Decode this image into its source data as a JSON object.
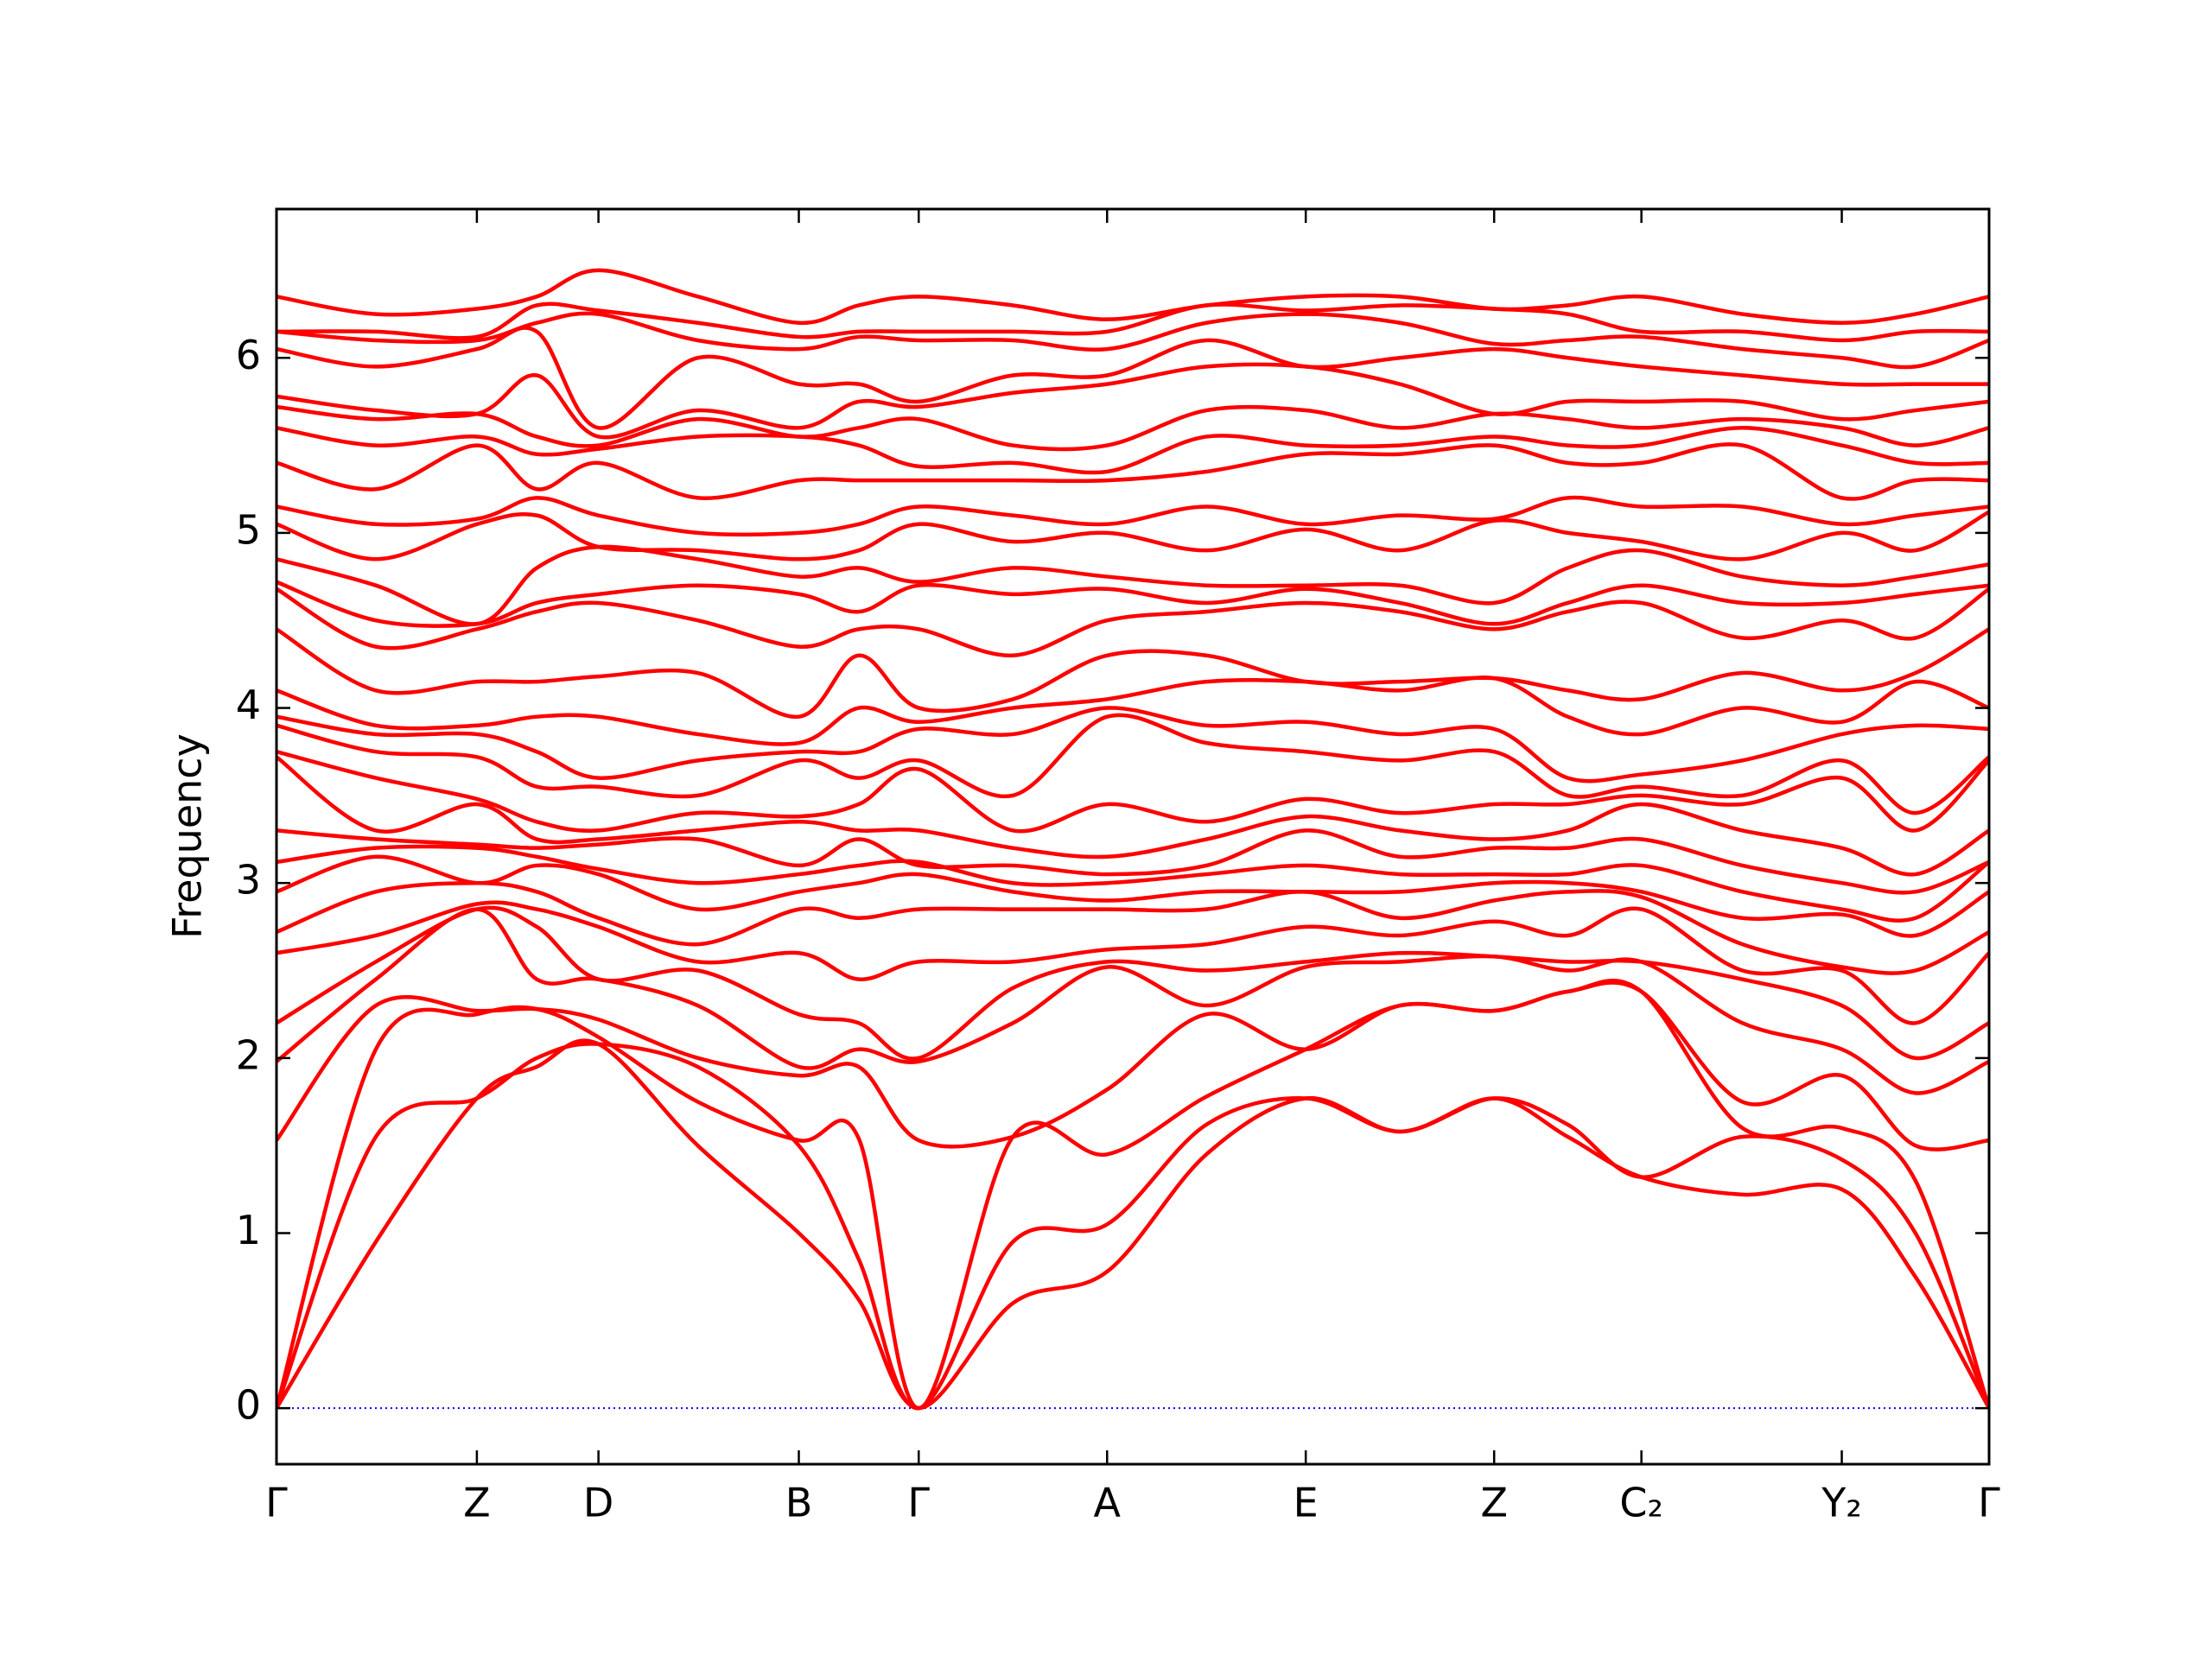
{
  "chart_data": {
    "type": "line",
    "ylabel": "Frequency",
    "color": "#ff0000",
    "xlim": [
      0,
      1
    ],
    "ylim": [
      -0.32,
      6.85
    ],
    "yticks": [
      0,
      1,
      2,
      3,
      4,
      5,
      6
    ],
    "xticks": [
      {
        "value": 0,
        "label": "Γ"
      },
      {
        "value": 0.117,
        "label": "Z"
      },
      {
        "value": 0.188,
        "label": "D"
      },
      {
        "value": 0.305,
        "label": "B"
      },
      {
        "value": 0.375,
        "label": "Γ"
      },
      {
        "value": 0.485,
        "label": "A"
      },
      {
        "value": 0.601,
        "label": "E"
      },
      {
        "value": 0.711,
        "label": "Z"
      },
      {
        "value": 0.797,
        "label": "C₂"
      },
      {
        "value": 0.914,
        "label": "Y₂"
      },
      {
        "value": 1,
        "label": "Γ"
      }
    ],
    "reference_line": {
      "value": 0,
      "color": "#0000ff",
      "style": "dotted"
    },
    "x": [
      0,
      0.058,
      0.117,
      0.152,
      0.188,
      0.246,
      0.305,
      0.34,
      0.375,
      0.43,
      0.485,
      0.543,
      0.601,
      0.656,
      0.711,
      0.754,
      0.797,
      0.856,
      0.914,
      0.957,
      1
    ],
    "series": [
      {
        "values": [
          0,
          0.95,
          1.77,
          1.95,
          2.08,
          1.5,
          1.0,
          0.62,
          0,
          0.6,
          0.78,
          1.45,
          1.77,
          1.58,
          1.77,
          1.55,
          1.32,
          1.22,
          1.25,
          0.75,
          0
        ]
      },
      {
        "values": [
          0,
          1.55,
          1.77,
          2.0,
          2.08,
          1.95,
          1.5,
          0.85,
          0,
          0.95,
          1.05,
          1.62,
          1.77,
          1.58,
          1.77,
          1.62,
          1.32,
          1.55,
          1.42,
          1.0,
          0
        ]
      },
      {
        "values": [
          0,
          2.05,
          2.25,
          2.28,
          2.12,
          1.75,
          1.53,
          1.54,
          0,
          1.55,
          1.45,
          1.78,
          2.05,
          2.3,
          2.27,
          2.38,
          2.38,
          1.6,
          1.6,
          1.3,
          0
        ]
      },
      {
        "values": [
          1.53,
          2.3,
          2.27,
          2.28,
          2.22,
          2.0,
          1.9,
          1.95,
          1.53,
          1.55,
          1.82,
          2.25,
          2.05,
          2.3,
          2.27,
          2.38,
          2.38,
          1.75,
          1.9,
          1.5,
          1.53
        ]
      },
      {
        "values": [
          1.98,
          2.45,
          2.85,
          2.45,
          2.45,
          2.3,
          1.95,
          2.05,
          1.98,
          2.2,
          2.52,
          2.3,
          2.52,
          2.55,
          2.58,
          2.5,
          2.55,
          2.2,
          2.05,
          1.8,
          1.98
        ]
      },
      {
        "values": [
          2.2,
          2.55,
          2.85,
          2.75,
          2.45,
          2.5,
          2.25,
          2.2,
          2.0,
          2.4,
          2.55,
          2.5,
          2.55,
          2.6,
          2.58,
          2.55,
          2.55,
          2.45,
          2.3,
          2.0,
          2.2
        ]
      },
      {
        "values": [
          2.6,
          2.7,
          2.88,
          2.85,
          2.75,
          2.55,
          2.6,
          2.45,
          2.55,
          2.55,
          2.62,
          2.65,
          2.75,
          2.7,
          2.78,
          2.7,
          2.85,
          2.5,
          2.5,
          2.2,
          2.6
        ]
      },
      {
        "values": [
          2.72,
          2.95,
          3.0,
          2.95,
          2.8,
          2.65,
          2.85,
          2.8,
          2.85,
          2.85,
          2.85,
          2.85,
          2.95,
          2.8,
          2.9,
          2.95,
          2.92,
          2.65,
          2.52,
          2.5,
          2.72
        ]
      },
      {
        "values": [
          2.95,
          3.15,
          3.0,
          3.1,
          3.05,
          2.85,
          2.95,
          3.0,
          3.05,
          2.95,
          2.9,
          2.95,
          2.95,
          2.95,
          3.0,
          3.0,
          2.95,
          2.8,
          2.82,
          2.7,
          2.95
        ]
      },
      {
        "values": [
          3.12,
          3.2,
          3.2,
          3.15,
          3.08,
          3.0,
          3.05,
          3.1,
          3.12,
          3.0,
          3.0,
          3.05,
          3.1,
          3.05,
          3.05,
          3.05,
          3.1,
          2.95,
          2.85,
          2.8,
          3.12
        ]
      },
      {
        "values": [
          3.3,
          3.25,
          3.22,
          3.2,
          3.22,
          3.25,
          3.1,
          3.25,
          3.1,
          3.1,
          3.05,
          3.1,
          3.3,
          3.15,
          3.2,
          3.2,
          3.25,
          3.1,
          3.0,
          2.95,
          3.12
        ]
      },
      {
        "values": [
          3.72,
          3.3,
          3.45,
          3.25,
          3.25,
          3.3,
          3.35,
          3.3,
          3.3,
          3.2,
          3.15,
          3.25,
          3.38,
          3.3,
          3.25,
          3.3,
          3.45,
          3.3,
          3.2,
          3.05,
          3.3
        ]
      },
      {
        "values": [
          3.75,
          3.6,
          3.48,
          3.35,
          3.3,
          3.4,
          3.38,
          3.45,
          3.65,
          3.3,
          3.45,
          3.35,
          3.48,
          3.4,
          3.45,
          3.45,
          3.5,
          3.45,
          3.6,
          3.3,
          3.7
        ]
      },
      {
        "values": [
          3.9,
          3.75,
          3.72,
          3.55,
          3.55,
          3.5,
          3.7,
          3.6,
          3.7,
          3.5,
          3.95,
          3.8,
          3.75,
          3.7,
          3.75,
          3.5,
          3.55,
          3.5,
          3.7,
          3.4,
          3.72
        ]
      },
      {
        "values": [
          3.95,
          3.85,
          3.85,
          3.75,
          3.6,
          3.7,
          3.75,
          3.75,
          3.88,
          3.85,
          4.0,
          3.9,
          3.92,
          3.85,
          3.88,
          3.6,
          3.62,
          3.7,
          3.85,
          3.9,
          3.88
        ]
      },
      {
        "values": [
          4.1,
          3.9,
          3.9,
          3.95,
          3.95,
          3.85,
          3.8,
          4.0,
          3.92,
          4.0,
          4.05,
          4.15,
          4.15,
          4.1,
          4.17,
          3.95,
          3.85,
          4.0,
          3.92,
          4.15,
          4.0
        ]
      },
      {
        "values": [
          4.45,
          4.1,
          4.15,
          4.15,
          4.18,
          4.2,
          3.95,
          4.3,
          4.0,
          4.05,
          4.3,
          4.3,
          4.15,
          4.15,
          4.17,
          4.1,
          4.05,
          4.2,
          4.1,
          4.2,
          4.45
        ]
      },
      {
        "values": [
          4.68,
          4.35,
          4.45,
          4.55,
          4.6,
          4.5,
          4.35,
          4.45,
          4.45,
          4.3,
          4.5,
          4.55,
          4.6,
          4.55,
          4.45,
          4.55,
          4.6,
          4.4,
          4.5,
          4.4,
          4.68
        ]
      },
      {
        "values": [
          4.72,
          4.5,
          4.48,
          4.6,
          4.65,
          4.7,
          4.65,
          4.55,
          4.7,
          4.65,
          4.68,
          4.6,
          4.68,
          4.6,
          4.48,
          4.6,
          4.7,
          4.6,
          4.6,
          4.65,
          4.7
        ]
      },
      {
        "values": [
          4.85,
          4.7,
          4.48,
          4.8,
          4.92,
          4.85,
          4.75,
          4.8,
          4.72,
          4.8,
          4.75,
          4.7,
          4.7,
          4.7,
          4.6,
          4.8,
          4.9,
          4.75,
          4.7,
          4.75,
          4.82
        ]
      },
      {
        "values": [
          5.05,
          4.85,
          5.05,
          5.1,
          4.92,
          4.9,
          4.85,
          4.9,
          5.05,
          4.95,
          5.0,
          4.9,
          5.02,
          4.9,
          5.07,
          5.0,
          4.95,
          4.85,
          5.0,
          4.9,
          5.12
        ]
      },
      {
        "values": [
          5.15,
          5.05,
          5.08,
          5.2,
          5.1,
          5.0,
          5.0,
          5.05,
          5.15,
          5.1,
          5.05,
          5.15,
          5.05,
          5.1,
          5.08,
          5.2,
          5.15,
          5.15,
          5.05,
          5.1,
          5.15
        ]
      },
      {
        "values": [
          5.4,
          5.25,
          5.5,
          5.25,
          5.4,
          5.2,
          5.3,
          5.3,
          5.3,
          5.3,
          5.3,
          5.35,
          5.45,
          5.45,
          5.5,
          5.4,
          5.4,
          5.5,
          5.2,
          5.3,
          5.3
        ]
      },
      {
        "values": [
          5.6,
          5.5,
          5.55,
          5.45,
          5.48,
          5.55,
          5.55,
          5.5,
          5.38,
          5.4,
          5.35,
          5.55,
          5.5,
          5.5,
          5.55,
          5.5,
          5.5,
          5.6,
          5.5,
          5.4,
          5.4
        ]
      },
      {
        "values": [
          5.72,
          5.65,
          5.68,
          5.55,
          5.5,
          5.65,
          5.55,
          5.6,
          5.65,
          5.5,
          5.5,
          5.7,
          5.7,
          5.6,
          5.68,
          5.65,
          5.6,
          5.65,
          5.6,
          5.5,
          5.6
        ]
      },
      {
        "values": [
          5.78,
          5.7,
          5.68,
          5.9,
          5.55,
          5.7,
          5.6,
          5.75,
          5.72,
          5.8,
          5.85,
          5.95,
          5.95,
          5.85,
          5.68,
          5.75,
          5.75,
          5.75,
          5.65,
          5.7,
          5.75
        ]
      },
      {
        "values": [
          6.05,
          5.95,
          6.05,
          6.15,
          5.6,
          6.0,
          5.85,
          5.85,
          5.75,
          5.9,
          5.9,
          6.1,
          5.95,
          6.0,
          6.05,
          6.0,
          5.95,
          5.9,
          5.85,
          5.85,
          5.85
        ]
      },
      {
        "values": [
          6.15,
          6.1,
          6.1,
          6.2,
          6.25,
          6.1,
          6.05,
          6.12,
          6.1,
          6.1,
          6.05,
          6.2,
          6.25,
          6.2,
          6.08,
          6.1,
          6.12,
          6.05,
          6.0,
          5.95,
          6.1
        ]
      },
      {
        "values": [
          6.15,
          6.15,
          6.12,
          6.3,
          6.27,
          6.2,
          6.12,
          6.15,
          6.15,
          6.15,
          6.15,
          6.3,
          6.27,
          6.3,
          6.28,
          6.25,
          6.15,
          6.15,
          6.1,
          6.15,
          6.15
        ]
      },
      {
        "values": [
          6.35,
          6.25,
          6.28,
          6.35,
          6.5,
          6.35,
          6.2,
          6.3,
          6.35,
          6.3,
          6.22,
          6.3,
          6.35,
          6.35,
          6.28,
          6.3,
          6.35,
          6.25,
          6.2,
          6.25,
          6.35
        ]
      }
    ]
  }
}
